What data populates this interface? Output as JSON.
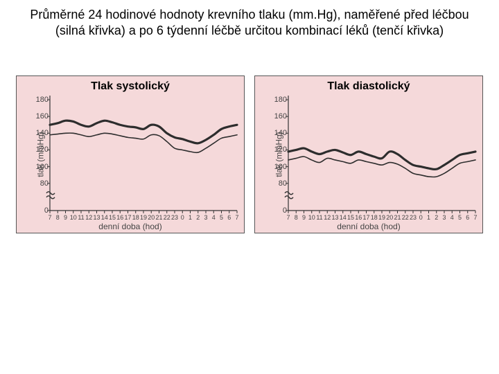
{
  "title": "Průměrné 24 hodinové hodnoty krevního tlaku (mm.Hg), naměřené před léčbou (silná křivka) a po 6 týdenní léčbě určitou kombinací léků (tenčí křivka)",
  "chart_common": {
    "background_color": "#f5d9da",
    "axis_color": "#333333",
    "tick_color": "#333333",
    "label_color": "#444444",
    "title_fontsize": 16,
    "title_fontweight": "bold",
    "ylabel": "tlak (mmHg)",
    "xlabel": "denní doba (hod)",
    "x_categories": [
      "7",
      "8",
      "9",
      "10",
      "11",
      "12",
      "13",
      "14",
      "15",
      "16",
      "17",
      "18",
      "19",
      "20",
      "21",
      "22",
      "23",
      "0",
      "1",
      "2",
      "3",
      "4",
      "5",
      "6",
      "7"
    ],
    "thick_line_width": 3.2,
    "thin_line_width": 1.6,
    "line_color": "#2d2d2d",
    "break_marks": true
  },
  "charts": [
    {
      "title": "Tlak systolický",
      "y_ticks": [
        0,
        80,
        100,
        120,
        140,
        160,
        180
      ],
      "y_tick_labels": [
        "0",
        "80",
        "100",
        "120",
        "140",
        "160",
        "180"
      ],
      "y_min_upper": 75,
      "y_max_upper": 185,
      "series_thick": [
        150,
        152,
        155,
        154,
        150,
        148,
        152,
        155,
        153,
        150,
        148,
        147,
        145,
        150,
        148,
        140,
        135,
        133,
        130,
        128,
        132,
        138,
        145,
        148,
        150
      ],
      "series_thin": [
        138,
        139,
        140,
        140,
        138,
        136,
        138,
        140,
        139,
        137,
        135,
        134,
        133,
        138,
        137,
        130,
        122,
        120,
        118,
        117,
        122,
        128,
        134,
        136,
        138
      ]
    },
    {
      "title": "Tlak diastolický",
      "y_ticks": [
        0,
        80,
        100,
        120,
        140,
        160,
        180
      ],
      "y_tick_labels": [
        "0",
        "80",
        "100",
        "120",
        "140",
        "160",
        "180"
      ],
      "y_min_upper": 75,
      "y_max_upper": 185,
      "series_thick": [
        118,
        120,
        122,
        118,
        115,
        118,
        120,
        117,
        114,
        118,
        115,
        112,
        110,
        118,
        115,
        108,
        102,
        100,
        98,
        97,
        102,
        108,
        114,
        116,
        118
      ],
      "series_thin": [
        108,
        110,
        112,
        108,
        105,
        110,
        108,
        106,
        104,
        108,
        106,
        104,
        102,
        105,
        103,
        98,
        92,
        90,
        88,
        88,
        92,
        98,
        104,
        106,
        108
      ]
    }
  ]
}
